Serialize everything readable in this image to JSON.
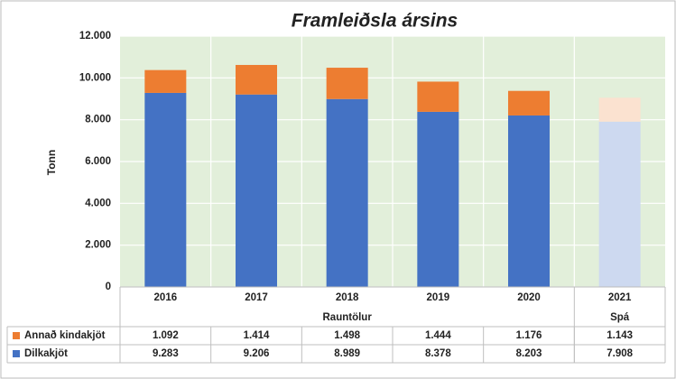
{
  "chart_data": {
    "type": "stacked_bar",
    "title": "Framleiðsla ársins",
    "y_label": "Tonn",
    "categories": [
      "2016",
      "2017",
      "2018",
      "2019",
      "2020",
      "2021"
    ],
    "groups": [
      {
        "name": "Rauntölur",
        "count": 5
      },
      {
        "name": "Spá",
        "count": 1,
        "forecast": true
      }
    ],
    "series": [
      {
        "name": "Dilkakjöt",
        "color": "#4472c4",
        "forecast_color": "#cdd9f0",
        "values": [
          9283,
          9206,
          8989,
          8378,
          8203,
          7908
        ],
        "value_labels": [
          "9.283",
          "9.206",
          "8.989",
          "8.378",
          "8.203",
          "7.908"
        ]
      },
      {
        "name": "Annað kindakjöt",
        "color": "#ed7d31",
        "forecast_color": "#fbe2d0",
        "values": [
          1092,
          1414,
          1498,
          1444,
          1176,
          1143
        ],
        "value_labels": [
          "1.092",
          "1.414",
          "1.498",
          "1.444",
          "1.176",
          "1.143"
        ]
      }
    ],
    "ylim": [
      0,
      12000
    ],
    "yticks": [
      {
        "value": 0,
        "label": "0"
      },
      {
        "value": 2000,
        "label": "2.000"
      },
      {
        "value": 4000,
        "label": "4.000"
      },
      {
        "value": 6000,
        "label": "6.000"
      },
      {
        "value": 8000,
        "label": "8.000"
      },
      {
        "value": 10000,
        "label": "10.000"
      },
      {
        "value": 12000,
        "label": "12.000"
      }
    ],
    "grid": true,
    "plot_background": "#e2efda"
  }
}
